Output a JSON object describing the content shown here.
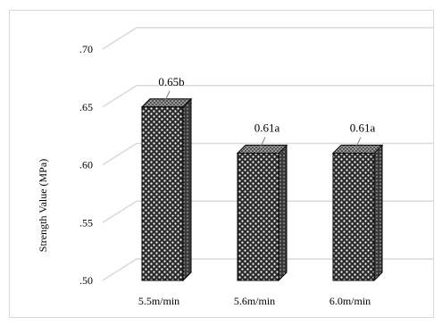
{
  "chart_data": {
    "type": "bar",
    "style": "3d-clustered-column",
    "title": "",
    "ylabel": "Strength Value (MPa)",
    "xlabel": "",
    "categories": [
      "5.5m/min",
      "5.6m/min",
      "6.0m/min"
    ],
    "values": [
      0.65,
      0.61,
      0.61
    ],
    "data_labels": [
      "0.65b",
      "0.61a",
      "0.61a"
    ],
    "ylim": [
      0.5,
      0.7
    ],
    "yticks": [
      0.5,
      0.55,
      0.6,
      0.65,
      0.7
    ],
    "ytick_labels": [
      ".50",
      ".55",
      ".60",
      ".65",
      ".70"
    ],
    "grid": true,
    "legend": "none",
    "colors": {
      "bar_pattern_fg": "#000000",
      "bar_pattern_bg": "#ffffff",
      "gridline": "#d9d9d9",
      "frame": "#d9d9d9"
    }
  }
}
